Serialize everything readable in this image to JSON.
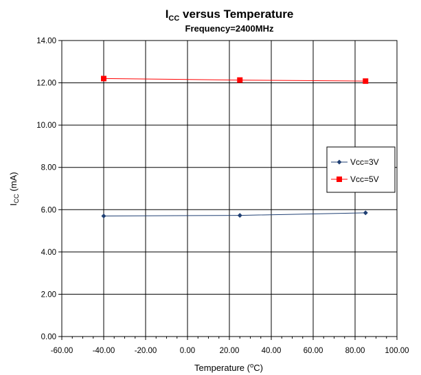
{
  "chart_data": {
    "type": "line",
    "title": {
      "main": "I",
      "sub": "CC",
      "rest": " versus Temperature"
    },
    "subtitle": "Frequency=2400MHz",
    "xlabel": {
      "pre": "Temperature (",
      "sup": "o",
      "post": "C)"
    },
    "ylabel": {
      "main": "I",
      "sub": "CC",
      "rest": " (mA)"
    },
    "xlim": [
      -60,
      100
    ],
    "ylim": [
      0,
      14
    ],
    "x_ticks": [
      -60,
      -40,
      -20,
      0,
      20,
      40,
      60,
      80,
      100
    ],
    "y_ticks": [
      0,
      2,
      4,
      6,
      8,
      10,
      12,
      14
    ],
    "x_tick_labels": [
      "-60.00",
      "-40.00",
      "-20.00",
      "0.00",
      "20.00",
      "40.00",
      "60.00",
      "80.00",
      "100.00"
    ],
    "y_tick_labels": [
      "0.00",
      "2.00",
      "4.00",
      "6.00",
      "8.00",
      "10.00",
      "12.00",
      "14.00"
    ],
    "grid": true,
    "legend_position": "right",
    "series": [
      {
        "name": "Vcc=3V",
        "color": "#1f3f73",
        "marker": "diamond",
        "x": [
          -40,
          25,
          85
        ],
        "y": [
          5.7,
          5.73,
          5.85
        ]
      },
      {
        "name": "Vcc=5V",
        "color": "#ff0000",
        "marker": "square",
        "x": [
          -40,
          25,
          85
        ],
        "y": [
          12.2,
          12.13,
          12.08
        ]
      }
    ]
  }
}
